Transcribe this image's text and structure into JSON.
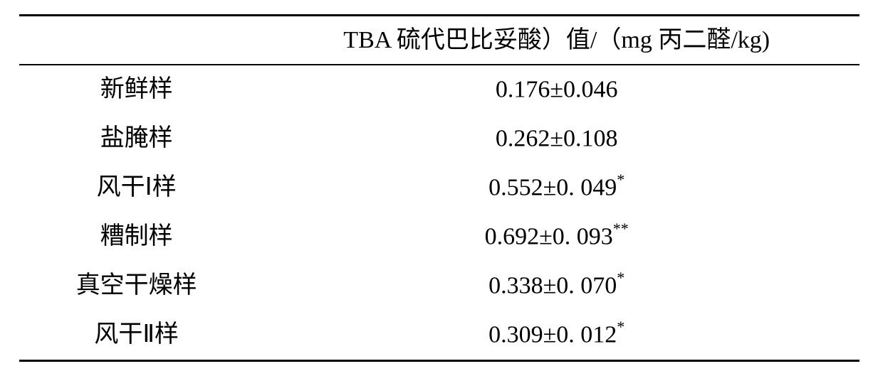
{
  "table": {
    "type": "table",
    "background_color": "#ffffff",
    "text_color": "#000000",
    "border_color": "#000000",
    "border_top_width": 3,
    "border_header_width": 2,
    "border_bottom_width": 3,
    "font_family": "Times New Roman, SimSun, serif",
    "header_fontsize": 34,
    "cell_fontsize": 34,
    "columns": [
      {
        "key": "label",
        "header": "",
        "width_pct": 28,
        "align": "center"
      },
      {
        "key": "value",
        "header": "TBA 硫代巴比妥酸）值/（mg 丙二醛/kg)",
        "width_pct": 72,
        "align": "center"
      }
    ],
    "rows": [
      {
        "label": "新鲜样",
        "value": "0.176±0.046",
        "sup": ""
      },
      {
        "label": "盐腌样",
        "value": "0.262±0.108",
        "sup": ""
      },
      {
        "label": "风干Ⅰ样",
        "value": "0.552±0. 049",
        "sup": "*"
      },
      {
        "label": "糟制样",
        "value": "0.692±0. 093",
        "sup": "**"
      },
      {
        "label": "真空干燥样",
        "value": "0.338±0. 070",
        "sup": "*"
      },
      {
        "label": "风干Ⅱ样",
        "value": "0.309±0. 012",
        "sup": "*"
      }
    ]
  }
}
